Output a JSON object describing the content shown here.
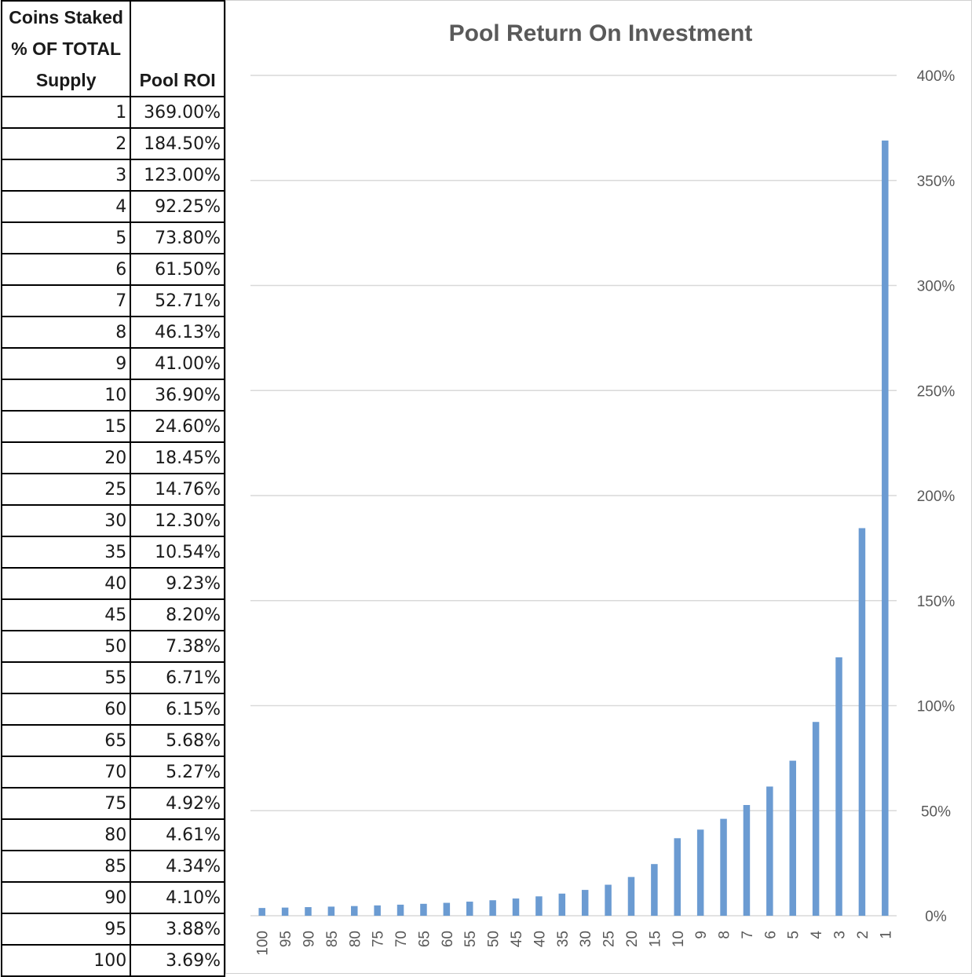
{
  "table": {
    "header_col1": "Coins Staked % OF TOTAL Supply",
    "header_col1_lines": [
      "Coins Staked",
      "% OF TOTAL",
      "Supply"
    ],
    "header_col2": "Pool ROI",
    "rows": [
      [
        "1",
        "369.00%"
      ],
      [
        "2",
        "184.50%"
      ],
      [
        "3",
        "123.00%"
      ],
      [
        "4",
        "92.25%"
      ],
      [
        "5",
        "73.80%"
      ],
      [
        "6",
        "61.50%"
      ],
      [
        "7",
        "52.71%"
      ],
      [
        "8",
        "46.13%"
      ],
      [
        "9",
        "41.00%"
      ],
      [
        "10",
        "36.90%"
      ],
      [
        "15",
        "24.60%"
      ],
      [
        "20",
        "18.45%"
      ],
      [
        "25",
        "14.76%"
      ],
      [
        "30",
        "12.30%"
      ],
      [
        "35",
        "10.54%"
      ],
      [
        "40",
        "9.23%"
      ],
      [
        "45",
        "8.20%"
      ],
      [
        "50",
        "7.38%"
      ],
      [
        "55",
        "6.71%"
      ],
      [
        "60",
        "6.15%"
      ],
      [
        "65",
        "5.68%"
      ],
      [
        "70",
        "5.27%"
      ],
      [
        "75",
        "4.92%"
      ],
      [
        "80",
        "4.61%"
      ],
      [
        "85",
        "4.34%"
      ],
      [
        "90",
        "4.10%"
      ],
      [
        "95",
        "3.88%"
      ],
      [
        "100",
        "3.69%"
      ]
    ]
  },
  "chart_data": {
    "type": "bar",
    "title": "Pool Return On Investment",
    "xlabel": "",
    "ylabel": "",
    "categories": [
      "100",
      "95",
      "90",
      "85",
      "80",
      "75",
      "70",
      "65",
      "60",
      "55",
      "50",
      "45",
      "40",
      "35",
      "30",
      "25",
      "20",
      "15",
      "10",
      "9",
      "8",
      "7",
      "6",
      "5",
      "4",
      "3",
      "2",
      "1"
    ],
    "values": [
      3.69,
      3.88,
      4.1,
      4.34,
      4.61,
      4.92,
      5.27,
      5.68,
      6.15,
      6.71,
      7.38,
      8.2,
      9.23,
      10.54,
      12.3,
      14.76,
      18.45,
      24.6,
      36.9,
      41.0,
      46.13,
      52.71,
      61.5,
      73.8,
      92.25,
      123.0,
      184.5,
      369.0
    ],
    "ylim": [
      0,
      400
    ],
    "yticks": [
      0,
      50,
      100,
      150,
      200,
      250,
      300,
      350,
      400
    ],
    "ytick_labels": [
      "0%",
      "50%",
      "100%",
      "150%",
      "200%",
      "250%",
      "300%",
      "350%",
      "400%"
    ],
    "y_axis_position": "right",
    "x_tick_rotation": "vertical",
    "grid": true,
    "legend": "none",
    "bar_color": "#6b9bd2",
    "grid_color": "#d9d9d9",
    "text_color": "#595959"
  }
}
